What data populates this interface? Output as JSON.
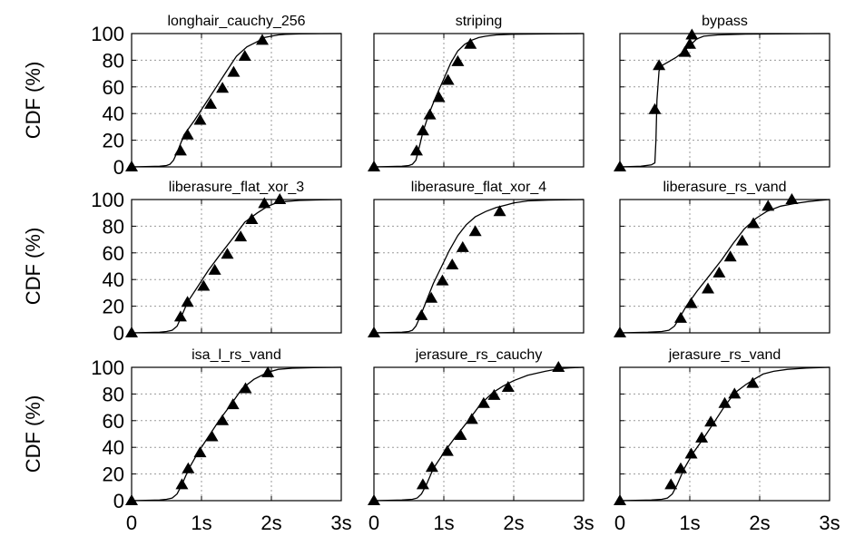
{
  "figure": {
    "ylabel": "CDF (%)",
    "y_ticks": [
      "0",
      "20",
      "40",
      "60",
      "80",
      "100"
    ],
    "x_ticks": [
      "0",
      "1s",
      "2s",
      "3s"
    ]
  },
  "chart_data": [
    {
      "type": "line",
      "title": "longhair_cauchy_256",
      "xlim": [
        0,
        3
      ],
      "ylim": [
        0,
        100
      ],
      "grid": true,
      "x": [
        0,
        0.4,
        0.5,
        0.55,
        0.6,
        0.66,
        0.75,
        0.9,
        1.05,
        1.2,
        1.35,
        1.5,
        1.65,
        1.8,
        1.9,
        2.0,
        2.1,
        2.2,
        2.4,
        2.7,
        3.0
      ],
      "y": [
        0,
        0.5,
        1,
        2,
        5,
        12,
        24,
        35,
        47,
        59,
        71,
        83,
        90,
        94,
        97,
        98,
        99,
        99.4,
        99.7,
        99.9,
        100
      ],
      "markers": {
        "x": [
          0,
          0.7,
          0.8,
          0.98,
          1.13,
          1.3,
          1.46,
          1.62,
          1.87
        ],
        "y": [
          0,
          12,
          24,
          35,
          47,
          59,
          71,
          83,
          95
        ]
      }
    },
    {
      "type": "line",
      "title": "striping",
      "xlim": [
        0,
        3
      ],
      "ylim": [
        0,
        100
      ],
      "grid": true,
      "x": [
        0,
        0.4,
        0.5,
        0.55,
        0.6,
        0.64,
        0.7,
        0.78,
        0.88,
        1.0,
        1.1,
        1.2,
        1.3,
        1.4,
        1.5,
        1.6,
        1.75,
        2.0,
        2.5,
        3.0
      ],
      "y": [
        0,
        0.5,
        1,
        2,
        5,
        13,
        26,
        39,
        52,
        66,
        78,
        87,
        92,
        95,
        97,
        98,
        99,
        99.5,
        99.8,
        100
      ],
      "markers": {
        "x": [
          0,
          0.61,
          0.7,
          0.8,
          0.93,
          1.06,
          1.2,
          1.38
        ],
        "y": [
          0,
          12,
          27,
          39,
          52,
          65,
          79,
          92
        ]
      }
    },
    {
      "type": "line",
      "title": "bypass",
      "xlim": [
        0,
        3
      ],
      "ylim": [
        0,
        100
      ],
      "grid": true,
      "x": [
        0,
        0.3,
        0.45,
        0.5,
        0.515,
        0.53,
        0.56,
        0.6,
        0.7,
        0.8,
        0.9,
        1.0,
        1.1,
        1.2,
        1.4,
        1.8,
        3.0
      ],
      "y": [
        0,
        0.5,
        1.5,
        3,
        20,
        50,
        72,
        76,
        79,
        82,
        86,
        91,
        96,
        98,
        99,
        99.6,
        100
      ],
      "markers": {
        "x": [
          0,
          0.5,
          0.56,
          0.93,
          1.0,
          1.03
        ],
        "y": [
          0,
          43,
          76,
          86,
          92,
          99
        ]
      }
    },
    {
      "type": "line",
      "title": "liberasure_flat_xor_3",
      "xlim": [
        0,
        3
      ],
      "ylim": [
        0,
        100
      ],
      "grid": true,
      "x": [
        0,
        0.4,
        0.5,
        0.58,
        0.65,
        0.71,
        0.8,
        0.95,
        1.1,
        1.27,
        1.45,
        1.62,
        1.8,
        1.95,
        2.05,
        2.2,
        2.4,
        2.7,
        3.0
      ],
      "y": [
        0,
        0.5,
        1,
        2,
        5,
        12,
        23,
        35,
        47,
        59,
        71,
        83,
        90,
        95,
        97,
        98.5,
        99.3,
        99.7,
        100
      ],
      "markers": {
        "x": [
          0,
          0.7,
          0.8,
          1.03,
          1.19,
          1.37,
          1.56,
          1.72,
          1.9,
          2.12
        ],
        "y": [
          0,
          12,
          23,
          35,
          47,
          59,
          72,
          85,
          97,
          100
        ]
      }
    },
    {
      "type": "line",
      "title": "liberasure_flat_xor_4",
      "xlim": [
        0,
        3
      ],
      "ylim": [
        0,
        100
      ],
      "grid": true,
      "x": [
        0,
        0.4,
        0.5,
        0.55,
        0.6,
        0.66,
        0.75,
        0.85,
        0.97,
        1.08,
        1.2,
        1.32,
        1.45,
        1.6,
        1.75,
        1.9,
        2.0,
        2.2,
        2.5,
        3.0
      ],
      "y": [
        0,
        0.5,
        1,
        2,
        5,
        12,
        24,
        37,
        50,
        62,
        73,
        81,
        87,
        91,
        94,
        96,
        97.5,
        99,
        99.6,
        100
      ],
      "markers": {
        "x": [
          0,
          0.68,
          0.82,
          0.98,
          1.12,
          1.27,
          1.45,
          1.8
        ],
        "y": [
          0,
          13,
          26,
          39,
          51,
          64,
          76,
          91
        ]
      }
    },
    {
      "type": "line",
      "title": "liberasure_rs_vand",
      "xlim": [
        0,
        3
      ],
      "ylim": [
        0,
        100
      ],
      "grid": true,
      "x": [
        0,
        0.4,
        0.6,
        0.7,
        0.78,
        0.85,
        0.95,
        1.1,
        1.28,
        1.46,
        1.62,
        1.78,
        1.95,
        2.1,
        2.3,
        2.5,
        2.7,
        2.85,
        3.0
      ],
      "y": [
        0,
        0.5,
        1,
        2,
        5,
        11,
        20,
        31,
        43,
        55,
        67,
        78,
        86,
        91,
        95,
        97,
        98.5,
        99.3,
        100
      ],
      "markers": {
        "x": [
          0,
          0.87,
          1.02,
          1.26,
          1.42,
          1.58,
          1.75,
          1.91,
          2.12,
          2.46
        ],
        "y": [
          0,
          11,
          22,
          33,
          45,
          57,
          69,
          82,
          95,
          100
        ]
      }
    },
    {
      "type": "line",
      "title": "isa_l_rs_vand",
      "xlim": [
        0,
        3
      ],
      "ylim": [
        0,
        100
      ],
      "grid": true,
      "x": [
        0,
        0.4,
        0.5,
        0.58,
        0.65,
        0.72,
        0.82,
        0.95,
        1.1,
        1.25,
        1.42,
        1.58,
        1.75,
        1.9,
        2.0,
        2.1,
        2.3,
        2.6,
        3.0
      ],
      "y": [
        0,
        0.5,
        1,
        2,
        5,
        12,
        24,
        36,
        48,
        60,
        72,
        84,
        91,
        95,
        97,
        98.5,
        99.3,
        99.7,
        100
      ],
      "markers": {
        "x": [
          0,
          0.72,
          0.81,
          0.98,
          1.15,
          1.3,
          1.45,
          1.63,
          1.95
        ],
        "y": [
          0,
          12,
          24,
          36,
          48,
          60,
          72,
          84,
          96
        ]
      }
    },
    {
      "type": "line",
      "title": "jerasure_rs_cauchy",
      "xlim": [
        0,
        3
      ],
      "ylim": [
        0,
        100
      ],
      "grid": true,
      "x": [
        0,
        0.4,
        0.55,
        0.62,
        0.68,
        0.75,
        0.85,
        1.0,
        1.17,
        1.35,
        1.52,
        1.7,
        1.85,
        2.0,
        2.2,
        2.45,
        2.65,
        2.8,
        3.0
      ],
      "y": [
        0,
        0.5,
        1,
        2,
        5,
        12,
        24,
        36,
        48,
        60,
        72,
        81,
        86,
        90,
        94,
        97,
        99,
        99.6,
        100
      ],
      "markers": {
        "x": [
          0,
          0.7,
          0.83,
          1.05,
          1.24,
          1.4,
          1.57,
          1.72,
          1.92,
          2.64
        ],
        "y": [
          0,
          12,
          25,
          37,
          49,
          61,
          73,
          79,
          85,
          100
        ]
      }
    },
    {
      "type": "line",
      "title": "jerasure_rs_vand",
      "xlim": [
        0,
        3
      ],
      "ylim": [
        0,
        100
      ],
      "grid": true,
      "x": [
        0,
        0.45,
        0.6,
        0.68,
        0.75,
        0.82,
        0.92,
        1.05,
        1.2,
        1.35,
        1.5,
        1.65,
        1.8,
        1.95,
        2.05,
        2.2,
        2.4,
        2.7,
        3.0
      ],
      "y": [
        0,
        0.5,
        1,
        2,
        5,
        12,
        24,
        36,
        47,
        59,
        71,
        81,
        87,
        92,
        95,
        97,
        98.5,
        99.5,
        100
      ],
      "markers": {
        "x": [
          0,
          0.73,
          0.87,
          1.02,
          1.17,
          1.3,
          1.5,
          1.64,
          1.9
        ],
        "y": [
          0,
          12,
          24,
          35,
          47,
          59,
          73,
          80,
          88
        ]
      }
    }
  ]
}
